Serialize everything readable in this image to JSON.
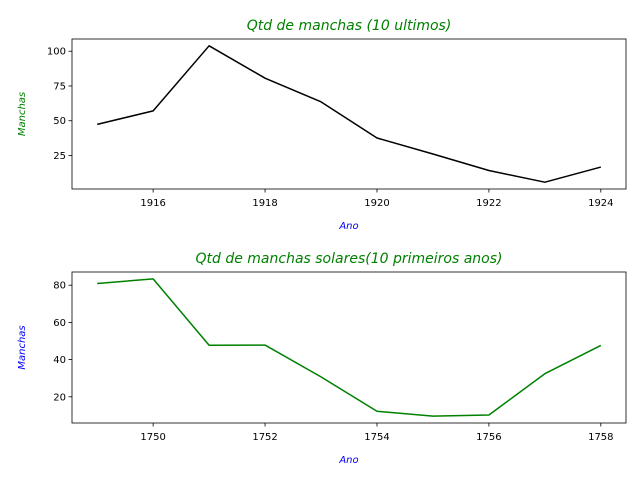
{
  "chart_data": [
    {
      "type": "line",
      "title": "Qtd de manchas (10 ultimos)",
      "title_color": "#008000",
      "xlabel": "Ano",
      "xlabel_color": "#0000ff",
      "ylabel": "Manchas",
      "ylabel_color": "#008000",
      "line_color": "#000000",
      "grid": false,
      "x": [
        1915,
        1916,
        1917,
        1918,
        1919,
        1920,
        1921,
        1922,
        1923,
        1924
      ],
      "y": [
        47.4,
        57.1,
        103.9,
        80.6,
        63.6,
        37.6,
        26.1,
        14.2,
        5.8,
        16.7
      ],
      "xlim": [
        1914.55,
        1924.45
      ],
      "ylim": [
        0.9,
        108.8
      ],
      "xticks": [
        1916,
        1918,
        1920,
        1922,
        1924
      ],
      "yticks": [
        25,
        50,
        75,
        100
      ]
    },
    {
      "type": "line",
      "title": "Qtd de manchas solares(10 primeiros anos)",
      "title_color": "#008000",
      "xlabel": "Ano",
      "xlabel_color": "#0000ff",
      "ylabel": "Manchas",
      "ylabel_color": "#0000ff",
      "line_color": "#008000",
      "grid": false,
      "x": [
        1749,
        1750,
        1751,
        1752,
        1753,
        1754,
        1755,
        1756,
        1757,
        1758
      ],
      "y": [
        80.9,
        83.4,
        47.7,
        47.8,
        30.7,
        12.2,
        9.6,
        10.2,
        32.4,
        47.6
      ],
      "xlim": [
        1748.55,
        1758.45
      ],
      "ylim": [
        5.9,
        87.1
      ],
      "xticks": [
        1750,
        1752,
        1754,
        1756,
        1758
      ],
      "yticks": [
        20,
        40,
        60,
        80
      ]
    }
  ]
}
